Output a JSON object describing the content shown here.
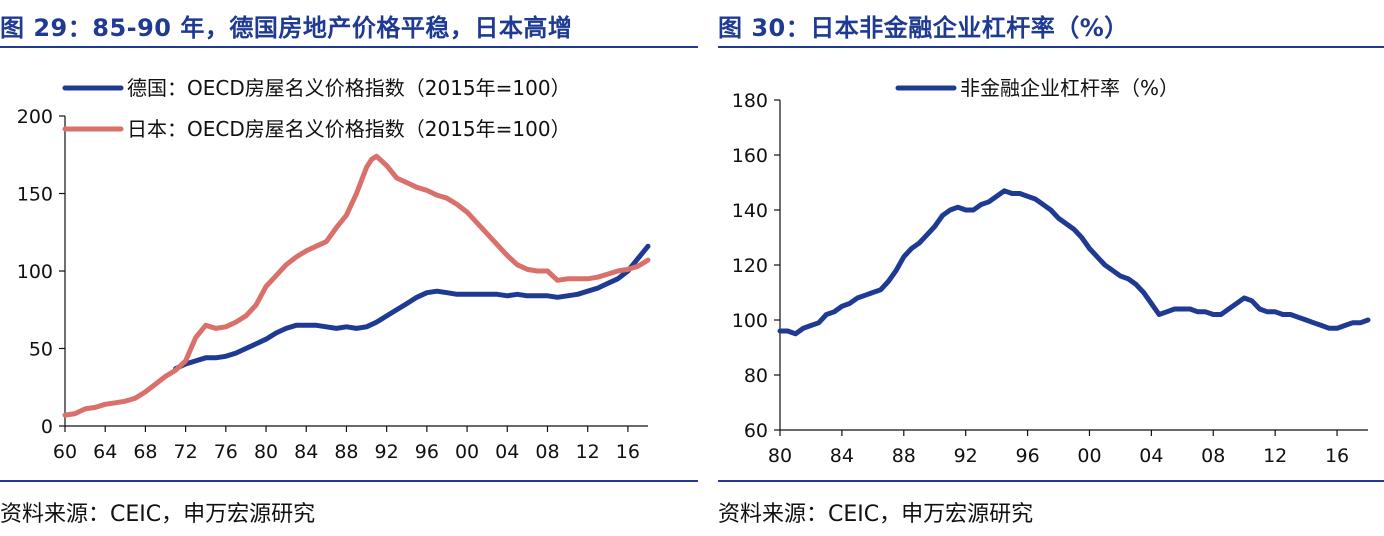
{
  "left": {
    "title": "图 29：85-90 年，德国房地产价格平稳，日本高增",
    "source": "资料来源：CEIC，申万宏源研究"
  },
  "right": {
    "title": "图 30：日本非金融企业杠杆率（%）",
    "source": "资料来源：CEIC，申万宏源研究"
  },
  "chart_data": [
    {
      "type": "line",
      "title": "",
      "xlabel": "",
      "ylabel": "",
      "xlim": [
        1960,
        2018
      ],
      "ylim": [
        0,
        200
      ],
      "yticks": [
        0,
        50,
        100,
        150,
        200
      ],
      "xticks": [
        1960,
        1964,
        1968,
        1972,
        1976,
        1980,
        1984,
        1988,
        1992,
        1996,
        2000,
        2004,
        2008,
        2012,
        2016
      ],
      "xtick_labels": [
        "60",
        "64",
        "68",
        "72",
        "76",
        "80",
        "84",
        "88",
        "92",
        "96",
        "00",
        "04",
        "08",
        "12",
        "16"
      ],
      "grid": false,
      "legend": "top-left",
      "series": [
        {
          "name": "德国：OECD房屋名义价格指数（2015年=100）",
          "color": "#1f3a93",
          "x": [
            1971,
            1972,
            1973,
            1974,
            1975,
            1976,
            1977,
            1978,
            1979,
            1980,
            1981,
            1982,
            1983,
            1984,
            1985,
            1986,
            1987,
            1988,
            1989,
            1990,
            1991,
            1992,
            1993,
            1994,
            1995,
            1996,
            1997,
            1998,
            1999,
            2000,
            2001,
            2002,
            2003,
            2004,
            2005,
            2006,
            2007,
            2008,
            2009,
            2010,
            2011,
            2012,
            2013,
            2014,
            2015,
            2016,
            2017,
            2018
          ],
          "y": [
            37,
            40,
            42,
            44,
            44,
            45,
            47,
            50,
            53,
            56,
            60,
            63,
            65,
            65,
            65,
            64,
            63,
            64,
            63,
            64,
            67,
            71,
            75,
            79,
            83,
            86,
            87,
            86,
            85,
            85,
            85,
            85,
            85,
            84,
            85,
            84,
            84,
            84,
            83,
            84,
            85,
            87,
            89,
            92,
            95,
            100,
            108,
            116
          ]
        },
        {
          "name": "日本：OECD房屋名义价格指数（2015年=100）",
          "color": "#d9706a",
          "x": [
            1960,
            1961,
            1962,
            1963,
            1964,
            1965,
            1966,
            1967,
            1968,
            1969,
            1970,
            1971,
            1972,
            1973,
            1974,
            1975,
            1976,
            1977,
            1978,
            1979,
            1980,
            1981,
            1982,
            1983,
            1984,
            1985,
            1986,
            1987,
            1988,
            1989,
            1990,
            1990.5,
            1991,
            1992,
            1993,
            1994,
            1995,
            1996,
            1997,
            1998,
            1999,
            2000,
            2001,
            2002,
            2003,
            2004,
            2005,
            2006,
            2007,
            2008,
            2009,
            2010,
            2011,
            2012,
            2013,
            2014,
            2015,
            2016,
            2017,
            2018
          ],
          "y": [
            7,
            8,
            11,
            12,
            14,
            15,
            16,
            18,
            22,
            27,
            32,
            36,
            42,
            57,
            65,
            63,
            64,
            67,
            71,
            78,
            90,
            97,
            104,
            109,
            113,
            116,
            119,
            128,
            136,
            150,
            167,
            172,
            174,
            168,
            160,
            157,
            154,
            152,
            149,
            147,
            143,
            138,
            131,
            124,
            117,
            110,
            104,
            101,
            100,
            100,
            94,
            95,
            95,
            95,
            96,
            98,
            100,
            101,
            103,
            107
          ]
        }
      ]
    },
    {
      "type": "line",
      "title": "",
      "xlabel": "",
      "ylabel": "",
      "xlim": [
        1980,
        2018
      ],
      "ylim": [
        60,
        180
      ],
      "yticks": [
        60,
        80,
        100,
        120,
        140,
        160,
        180
      ],
      "xticks": [
        1980,
        1984,
        1988,
        1992,
        1996,
        2000,
        2004,
        2008,
        2012,
        2016
      ],
      "xtick_labels": [
        "80",
        "84",
        "88",
        "92",
        "96",
        "00",
        "04",
        "08",
        "12",
        "16"
      ],
      "grid": false,
      "legend": "top-center",
      "series": [
        {
          "name": "非金融企业杠杆率（%）",
          "color": "#1f3a93",
          "x": [
            1980,
            1980.5,
            1981,
            1981.5,
            1982,
            1982.5,
            1983,
            1983.5,
            1984,
            1984.5,
            1985,
            1985.5,
            1986,
            1986.5,
            1987,
            1987.5,
            1988,
            1988.5,
            1989,
            1989.5,
            1990,
            1990.5,
            1991,
            1991.5,
            1992,
            1992.5,
            1993,
            1993.5,
            1994,
            1994.5,
            1995,
            1995.5,
            1996,
            1996.5,
            1997,
            1997.5,
            1998,
            1998.5,
            1999,
            1999.5,
            2000,
            2000.5,
            2001,
            2001.5,
            2002,
            2002.5,
            2003,
            2003.5,
            2004,
            2004.5,
            2005,
            2005.5,
            2006,
            2006.5,
            2007,
            2007.5,
            2008,
            2008.5,
            2009,
            2009.5,
            2010,
            2010.5,
            2011,
            2011.5,
            2012,
            2012.5,
            2013,
            2013.5,
            2014,
            2014.5,
            2015,
            2015.5,
            2016,
            2016.5,
            2017,
            2017.5,
            2018
          ],
          "y": [
            96,
            96,
            95,
            97,
            98,
            99,
            102,
            103,
            105,
            106,
            108,
            109,
            110,
            111,
            114,
            118,
            123,
            126,
            128,
            131,
            134,
            138,
            140,
            141,
            140,
            140,
            142,
            143,
            145,
            147,
            146,
            146,
            145,
            144,
            142,
            140,
            137,
            135,
            133,
            130,
            126,
            123,
            120,
            118,
            116,
            115,
            113,
            110,
            106,
            102,
            103,
            104,
            104,
            104,
            103,
            103,
            102,
            102,
            104,
            106,
            108,
            107,
            104,
            103,
            103,
            102,
            102,
            101,
            100,
            99,
            98,
            97,
            97,
            98,
            99,
            99,
            100
          ]
        }
      ]
    }
  ]
}
